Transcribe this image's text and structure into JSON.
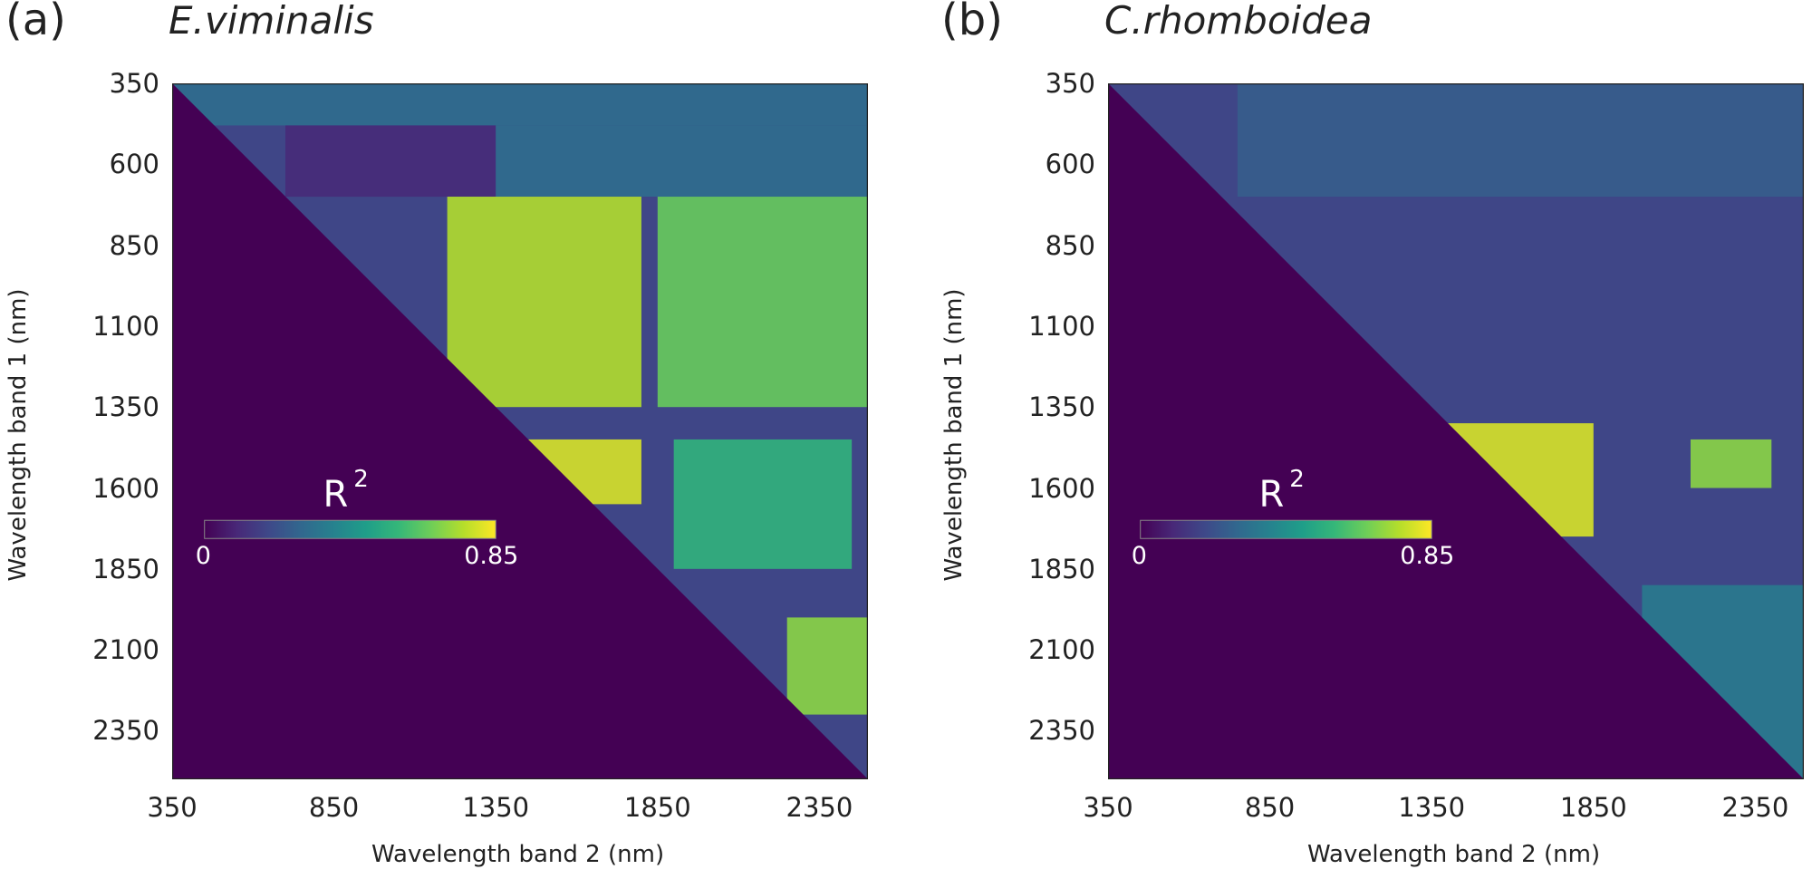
{
  "chart_data": [
    {
      "type": "heatmap",
      "panel_label": "(a)",
      "title": "E.viminalis",
      "xlabel": "Wavelength band 2 (nm)",
      "ylabel": "Wavelength band 1 (nm)",
      "xlim": [
        350,
        2500
      ],
      "ylim": [
        2500,
        350
      ],
      "x_ticks": [
        "350",
        "850",
        "1350",
        "1850",
        "2350"
      ],
      "y_ticks": [
        "350",
        "600",
        "850",
        "1100",
        "1350",
        "1600",
        "1850",
        "2100",
        "2350"
      ],
      "colorbar": {
        "title": "R",
        "superscript": "2",
        "min_label": "0",
        "max_label": "0.85",
        "range": [
          0,
          0.85
        ],
        "colormap": "viridis"
      },
      "masked_region": "lower triangle (band 1 > band 2)",
      "features": [
        {
          "x_range": [
            350,
            2500
          ],
          "y_range": [
            350,
            480
          ],
          "r2": 0.3,
          "note": "upper band, high near x 1350-2500"
        },
        {
          "x_range": [
            700,
            1350
          ],
          "y_range": [
            480,
            700
          ],
          "r2": 0.1
        },
        {
          "x_range": [
            1350,
            2500
          ],
          "y_range": [
            480,
            700
          ],
          "r2": 0.3
        },
        {
          "x_range": [
            1200,
            1800
          ],
          "y_range": [
            700,
            1350
          ],
          "r2": 0.75
        },
        {
          "x_range": [
            1850,
            2500
          ],
          "y_range": [
            700,
            1350
          ],
          "r2": 0.65
        },
        {
          "x_range": [
            1450,
            1800
          ],
          "y_range": [
            1450,
            1650
          ],
          "r2": 0.8
        },
        {
          "x_range": [
            1900,
            2450
          ],
          "y_range": [
            1450,
            1850
          ],
          "r2": 0.55
        },
        {
          "x_range": [
            2250,
            2500
          ],
          "y_range": [
            2000,
            2300
          ],
          "r2": 0.7
        }
      ]
    },
    {
      "type": "heatmap",
      "panel_label": "(b)",
      "title": "C.rhomboidea",
      "xlabel": "Wavelength band 2 (nm)",
      "ylabel": "Wavelength band 1 (nm)",
      "xlim": [
        350,
        2500
      ],
      "ylim": [
        2500,
        350
      ],
      "x_ticks": [
        "350",
        "850",
        "1350",
        "1850",
        "2350"
      ],
      "y_ticks": [
        "350",
        "600",
        "850",
        "1100",
        "1350",
        "1600",
        "1850",
        "2100",
        "2350"
      ],
      "colorbar": {
        "title": "R",
        "superscript": "2",
        "min_label": "0",
        "max_label": "0.85",
        "range": [
          0,
          0.85
        ],
        "colormap": "viridis"
      },
      "masked_region": "lower triangle (band 1 > band 2)",
      "features": [
        {
          "x_range": [
            750,
            2500
          ],
          "y_range": [
            350,
            700
          ],
          "r2": 0.25
        },
        {
          "x_range": [
            1400,
            1850
          ],
          "y_range": [
            1400,
            1750
          ],
          "r2": 0.8
        },
        {
          "x_range": [
            2150,
            2400
          ],
          "y_range": [
            1450,
            1600
          ],
          "r2": 0.7
        },
        {
          "x_range": [
            2000,
            2500
          ],
          "y_range": [
            1900,
            2500
          ],
          "r2": 0.35
        }
      ]
    }
  ]
}
